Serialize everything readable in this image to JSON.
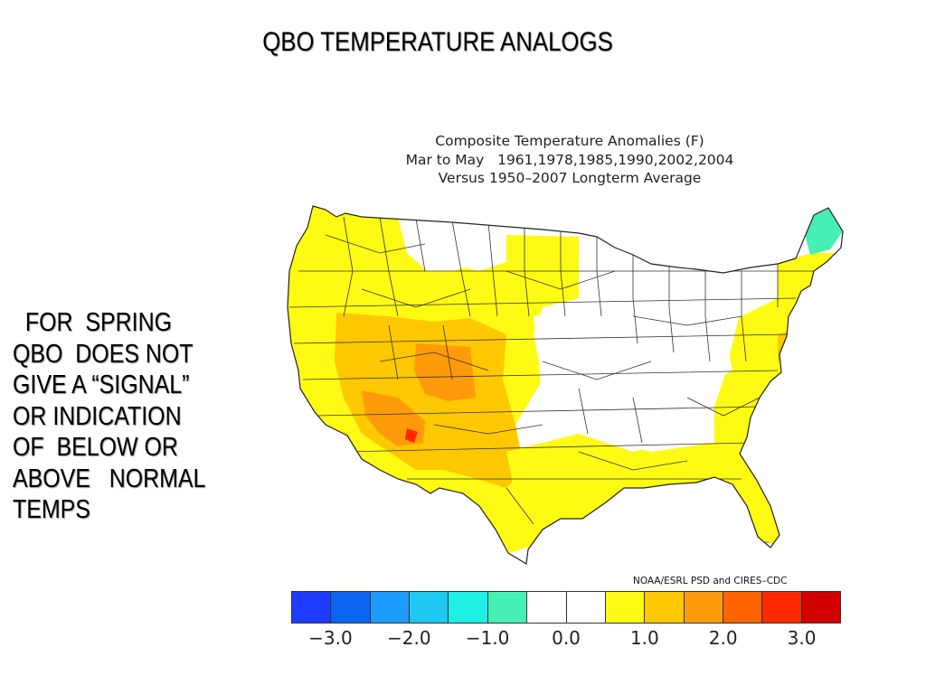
{
  "slide": {
    "title": "QBO TEMPERATURE  ANALOGS",
    "side_text_lines": [
      "  FOR  SPRING",
      "QBO  DOES NOT",
      "GIVE A “SIGNAL”",
      "OR INDICATION",
      "OF  BELOW OR",
      "ABOVE   NORMAL",
      "TEMPS"
    ]
  },
  "map": {
    "title_lines": [
      "Composite Temperature Anomalies (F)",
      "Mar to May   1961,1978,1985,1990,2002,2004",
      "Versus 1950–2007 Longterm Average"
    ],
    "credit": "NOAA/ESRL PSD and CIRES–CDC",
    "legend": {
      "colors": [
        "#1e3cff",
        "#0a64f0",
        "#1e9bff",
        "#1ec8f0",
        "#1ef0e6",
        "#46f0b4",
        "#ffffff",
        "#ffffff",
        "#fffa14",
        "#ffc800",
        "#ff9b0a",
        "#ff6400",
        "#ff2800",
        "#d20000"
      ],
      "ticks": [
        "−3.0",
        "−2.0",
        "−1.0",
        "0.0",
        "1.0",
        "2.0",
        "3.0"
      ],
      "colors_meaning": {
        "white": "#ffffff",
        "yellow": "#fffa14",
        "light_orange": "#ffc800",
        "orange": "#ff9b0a",
        "dark_orange": "#ff6400",
        "red": "#ff2800",
        "mint": "#46f0b4"
      }
    }
  }
}
